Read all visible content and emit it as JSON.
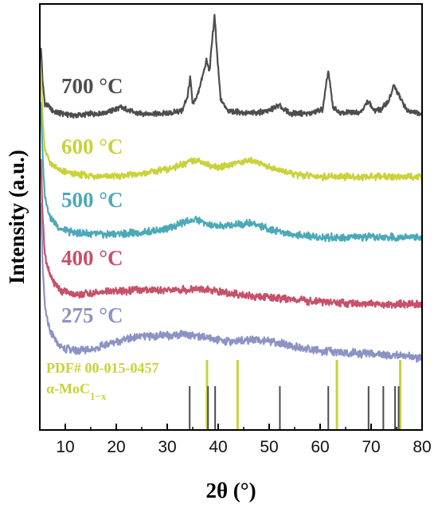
{
  "chart_data": {
    "type": "line",
    "title": "",
    "xlabel": "2θ (°)",
    "ylabel": "Intensity (a.u.)",
    "xlim": [
      5,
      80
    ],
    "xticks": [
      "10",
      "20",
      "30",
      "40",
      "50",
      "60",
      "70",
      "80"
    ],
    "colors": {
      "700": "#4d4d4d",
      "600": "#c9d23a",
      "500": "#4aa9b8",
      "400": "#c8506a",
      "275": "#8c93c4"
    },
    "series": [
      {
        "name": "700 °C",
        "color": "#4d4d4d",
        "points": [
          [
            5.2,
            0.7
          ],
          [
            5.6,
            0.3
          ],
          [
            6,
            0.12
          ],
          [
            8,
            0.03
          ],
          [
            12,
            0.0
          ],
          [
            18,
            0.03
          ],
          [
            21,
            0.08
          ],
          [
            24,
            0.02
          ],
          [
            30,
            0.02
          ],
          [
            33,
            0.05
          ],
          [
            34,
            0.2
          ],
          [
            34.5,
            0.38
          ],
          [
            35,
            0.1
          ],
          [
            36,
            0.22
          ],
          [
            37,
            0.4
          ],
          [
            37.7,
            0.55
          ],
          [
            38.3,
            0.45
          ],
          [
            38.8,
            0.75
          ],
          [
            39.3,
            1.0
          ],
          [
            39.8,
            0.6
          ],
          [
            40.5,
            0.15
          ],
          [
            42,
            0.05
          ],
          [
            46,
            0.02
          ],
          [
            50,
            0.05
          ],
          [
            52,
            0.1
          ],
          [
            54,
            0.02
          ],
          [
            58,
            0.02
          ],
          [
            60.5,
            0.06
          ],
          [
            61.6,
            0.45
          ],
          [
            62.5,
            0.08
          ],
          [
            64,
            0.02
          ],
          [
            68,
            0.04
          ],
          [
            69.5,
            0.15
          ],
          [
            70.5,
            0.05
          ],
          [
            72,
            0.06
          ],
          [
            73.5,
            0.15
          ],
          [
            74.5,
            0.3
          ],
          [
            75.3,
            0.22
          ],
          [
            76,
            0.15
          ],
          [
            77,
            0.05
          ],
          [
            80,
            0.02
          ]
        ]
      },
      {
        "name": "600 °C",
        "color": "#c9d23a",
        "points": [
          [
            5.2,
            0.9
          ],
          [
            5.6,
            0.45
          ],
          [
            6,
            0.22
          ],
          [
            7,
            0.12
          ],
          [
            9,
            0.05
          ],
          [
            12,
            0.02
          ],
          [
            18,
            0.0
          ],
          [
            24,
            0.02
          ],
          [
            30,
            0.06
          ],
          [
            34,
            0.12
          ],
          [
            36,
            0.14
          ],
          [
            38,
            0.1
          ],
          [
            40,
            0.08
          ],
          [
            44,
            0.12
          ],
          [
            47,
            0.14
          ],
          [
            50,
            0.08
          ],
          [
            55,
            0.02
          ],
          [
            60,
            0.0
          ],
          [
            65,
            0.0
          ],
          [
            70,
            0.0
          ],
          [
            75,
            0.0
          ],
          [
            80,
            0.0
          ]
        ]
      },
      {
        "name": "500 °C",
        "color": "#4aa9b8",
        "points": [
          [
            5.2,
            1.0
          ],
          [
            5.6,
            0.55
          ],
          [
            6,
            0.3
          ],
          [
            7,
            0.15
          ],
          [
            9,
            0.06
          ],
          [
            12,
            0.03
          ],
          [
            18,
            0.02
          ],
          [
            24,
            0.03
          ],
          [
            30,
            0.06
          ],
          [
            34,
            0.12
          ],
          [
            36,
            0.13
          ],
          [
            38,
            0.09
          ],
          [
            40,
            0.08
          ],
          [
            44,
            0.1
          ],
          [
            47,
            0.1
          ],
          [
            50,
            0.06
          ],
          [
            55,
            0.02
          ],
          [
            60,
            0.0
          ],
          [
            65,
            0.0
          ],
          [
            70,
            0.0
          ],
          [
            75,
            0.0
          ],
          [
            80,
            0.0
          ]
        ]
      },
      {
        "name": "400 °C",
        "color": "#c8506a",
        "points": [
          [
            5.2,
            1.05
          ],
          [
            5.6,
            0.6
          ],
          [
            6,
            0.35
          ],
          [
            7,
            0.2
          ],
          [
            9,
            0.1
          ],
          [
            12,
            0.07
          ],
          [
            18,
            0.09
          ],
          [
            24,
            0.1
          ],
          [
            30,
            0.1
          ],
          [
            36,
            0.11
          ],
          [
            42,
            0.08
          ],
          [
            46,
            0.06
          ],
          [
            50,
            0.05
          ],
          [
            55,
            0.03
          ],
          [
            60,
            0.02
          ],
          [
            65,
            0.01
          ],
          [
            70,
            0.0
          ],
          [
            75,
            0.0
          ],
          [
            80,
            0.0
          ]
        ]
      },
      {
        "name": "275 °C",
        "color": "#8c93c4",
        "points": [
          [
            5.2,
            1.1
          ],
          [
            5.6,
            0.6
          ],
          [
            6,
            0.35
          ],
          [
            7,
            0.18
          ],
          [
            9,
            0.08
          ],
          [
            12,
            0.05
          ],
          [
            16,
            0.07
          ],
          [
            20,
            0.12
          ],
          [
            24,
            0.15
          ],
          [
            30,
            0.16
          ],
          [
            34,
            0.17
          ],
          [
            38,
            0.14
          ],
          [
            42,
            0.12
          ],
          [
            47,
            0.13
          ],
          [
            50,
            0.12
          ],
          [
            55,
            0.08
          ],
          [
            60,
            0.05
          ],
          [
            65,
            0.04
          ],
          [
            70,
            0.03
          ],
          [
            75,
            0.02
          ],
          [
            80,
            0.0
          ]
        ]
      }
    ],
    "reference": {
      "label_line1": "PDF# 00-015-0457",
      "label_line2": "α-MoC",
      "label_sub": "1−x",
      "tall_color": "#c9d23a",
      "short_color": "#4d4d4d",
      "tall_lines": [
        37.8,
        43.8,
        63.3,
        75.7
      ],
      "short_lines": [
        34.4,
        38.0,
        39.4,
        52.1,
        61.6,
        69.5,
        72.4,
        74.7,
        75.4,
        80.0
      ]
    }
  }
}
